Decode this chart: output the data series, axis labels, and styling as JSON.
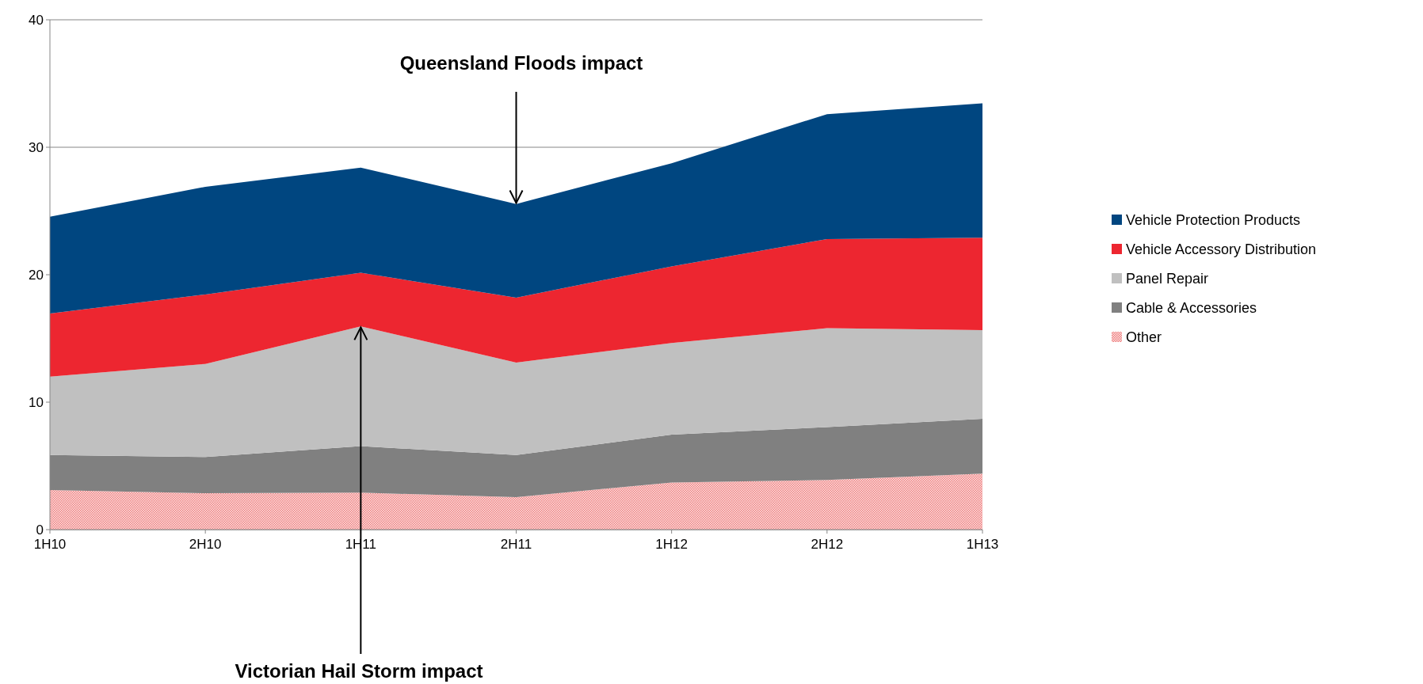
{
  "chart_data": {
    "type": "area",
    "stacked": true,
    "categories": [
      "1H10",
      "2H10",
      "1H11",
      "2H11",
      "1H12",
      "2H12",
      "1H13"
    ],
    "series": [
      {
        "name": "Other",
        "color": "#f08080",
        "values": [
          3.1,
          2.85,
          2.9,
          2.55,
          3.7,
          3.9,
          4.4
        ]
      },
      {
        "name": "Cable & Accessories",
        "color": "#808080",
        "values": [
          2.75,
          2.85,
          3.65,
          3.3,
          3.75,
          4.15,
          4.3
        ]
      },
      {
        "name": "Panel Repair",
        "color": "#c0c0c0",
        "values": [
          6.15,
          7.3,
          9.4,
          7.25,
          7.2,
          7.75,
          6.95
        ]
      },
      {
        "name": "Vehicle Accessory Distribution",
        "color": "#ed2630",
        "values": [
          4.95,
          5.45,
          4.2,
          5.1,
          6.0,
          7.0,
          7.25
        ]
      },
      {
        "name": "Vehicle Protection Products",
        "color": "#004680",
        "values": [
          7.6,
          8.45,
          8.25,
          7.35,
          8.1,
          9.8,
          10.55
        ]
      }
    ],
    "ylim": [
      0,
      40
    ],
    "yticks": [
      0,
      10,
      20,
      30,
      40
    ],
    "grid": "y",
    "legend": "right",
    "annotations": [
      {
        "text": "Queensland Floods impact",
        "x": "2H11",
        "y": 25.5
      },
      {
        "text": "Victorian Hail Storm impact",
        "x": "1H11",
        "y": 16
      }
    ]
  }
}
